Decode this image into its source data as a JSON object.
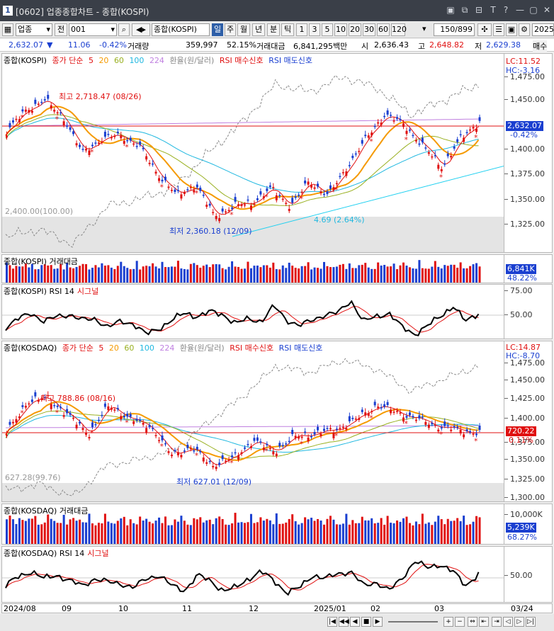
{
  "window": {
    "badge": "1",
    "title": "[0602] 업종종합차트 - 종합(KOSPI)",
    "controls": [
      "▣",
      "⧉",
      "⊟",
      "T",
      "?",
      "—",
      "▢",
      "✕"
    ]
  },
  "toolbar": {
    "market": "업종",
    "prev": "전",
    "code": "001",
    "name": "종합(KOSPI)",
    "periods": [
      "일",
      "주",
      "월",
      "년",
      "분",
      "틱"
    ],
    "active_period": "일",
    "intervals": [
      "1",
      "3",
      "5",
      "10",
      "20",
      "30",
      "60",
      "120"
    ],
    "count": "150/899",
    "date": "2025"
  },
  "quote": {
    "price": "2,632.07",
    "arrow": "▼",
    "change": "11.06",
    "change_pct": "-0.42%",
    "vol_label": "거래량",
    "volume": "359,997",
    "vol_ratio": "52.15%",
    "amt_label": "거래대금",
    "amount": "6,841,295백만",
    "open_label": "시",
    "open": "2,636.43",
    "high_label": "고",
    "high": "2,648.82",
    "low_label": "저",
    "low": "2,629.38",
    "more": "매수"
  },
  "kospi": {
    "legend": {
      "name": "종합(KOSPI)",
      "ma": "종가 단순",
      "ma5": "5",
      "ma20": "20",
      "ma60": "60",
      "ma100": "100",
      "ma224": "224",
      "fx": "환율(원/달러)",
      "rsi_buy": "RSI 매수신호",
      "rsi_sell": "RSI 매도신호"
    },
    "lc": "LC:11.52",
    "hc": "HC:-3.16",
    "ticks": [
      "1,475.00",
      "1,450.00",
      "1,400.00",
      "1,375.00",
      "1,350.00",
      "1,325.00"
    ],
    "price_flag": "2,632.07",
    "pct_flag": "-0.42%",
    "high_note": "최고 2,718.47 (08/26)",
    "low_note": "최저 2,360.18 (12/09)",
    "fx_note": "2,400.00(100.00)",
    "trend_note": "4.69 (2.64%)",
    "vol_legend": "종합(KOSPI) 거래대금",
    "vol_flag": "6,841K",
    "vol_pct": "48.22%",
    "rsi_legend": "종합(KOSPI) RSI 14",
    "rsi_signal": "시그널",
    "rsi_ticks": [
      "75.00",
      "50.00"
    ]
  },
  "kosdaq": {
    "legend": {
      "name": "종합(KOSDAQ)",
      "ma": "종가 단순",
      "ma5": "5",
      "ma20": "20",
      "ma60": "60",
      "ma100": "100",
      "ma224": "224",
      "fx": "환율(원/달러)",
      "rsi_buy": "RSI 매수신호",
      "rsi_sell": "RSI 매도신호"
    },
    "lc": "LC:14.87",
    "hc": "HC:-8.70",
    "ticks": [
      "1,475.00",
      "1,450.00",
      "1,425.00",
      "1,400.00",
      "1,375.00",
      "1,350.00",
      "1,325.00",
      "1,300.00"
    ],
    "price_flag": "720.22",
    "pct_flag": "0.11%",
    "high_note": "최고 788.86 (08/16)",
    "low_note": "최저 627.01 (12/09)",
    "fx_note": "627.28(99.76)",
    "vol_legend": "종합(KOSDAQ) 거래대금",
    "vol_tick": "10,000K",
    "vol_flag": "5,239K",
    "vol_pct": "68.27%",
    "rsi_legend": "종합(KOSDAQ) RSI 14",
    "rsi_signal": "시그널",
    "rsi_ticks": [
      "50.00"
    ]
  },
  "xaxis": [
    "2024/08",
    "09",
    "10",
    "11",
    "12",
    "2025/01",
    "02",
    "03",
    "03/24"
  ],
  "colors": {
    "up": "#e01010",
    "down": "#1a3fd0",
    "ma5": "#e01010",
    "ma20": "#f59a00",
    "ma60": "#99b020",
    "ma100": "#20b8e0",
    "ma224": "#c080e0",
    "fx": "#888888"
  }
}
